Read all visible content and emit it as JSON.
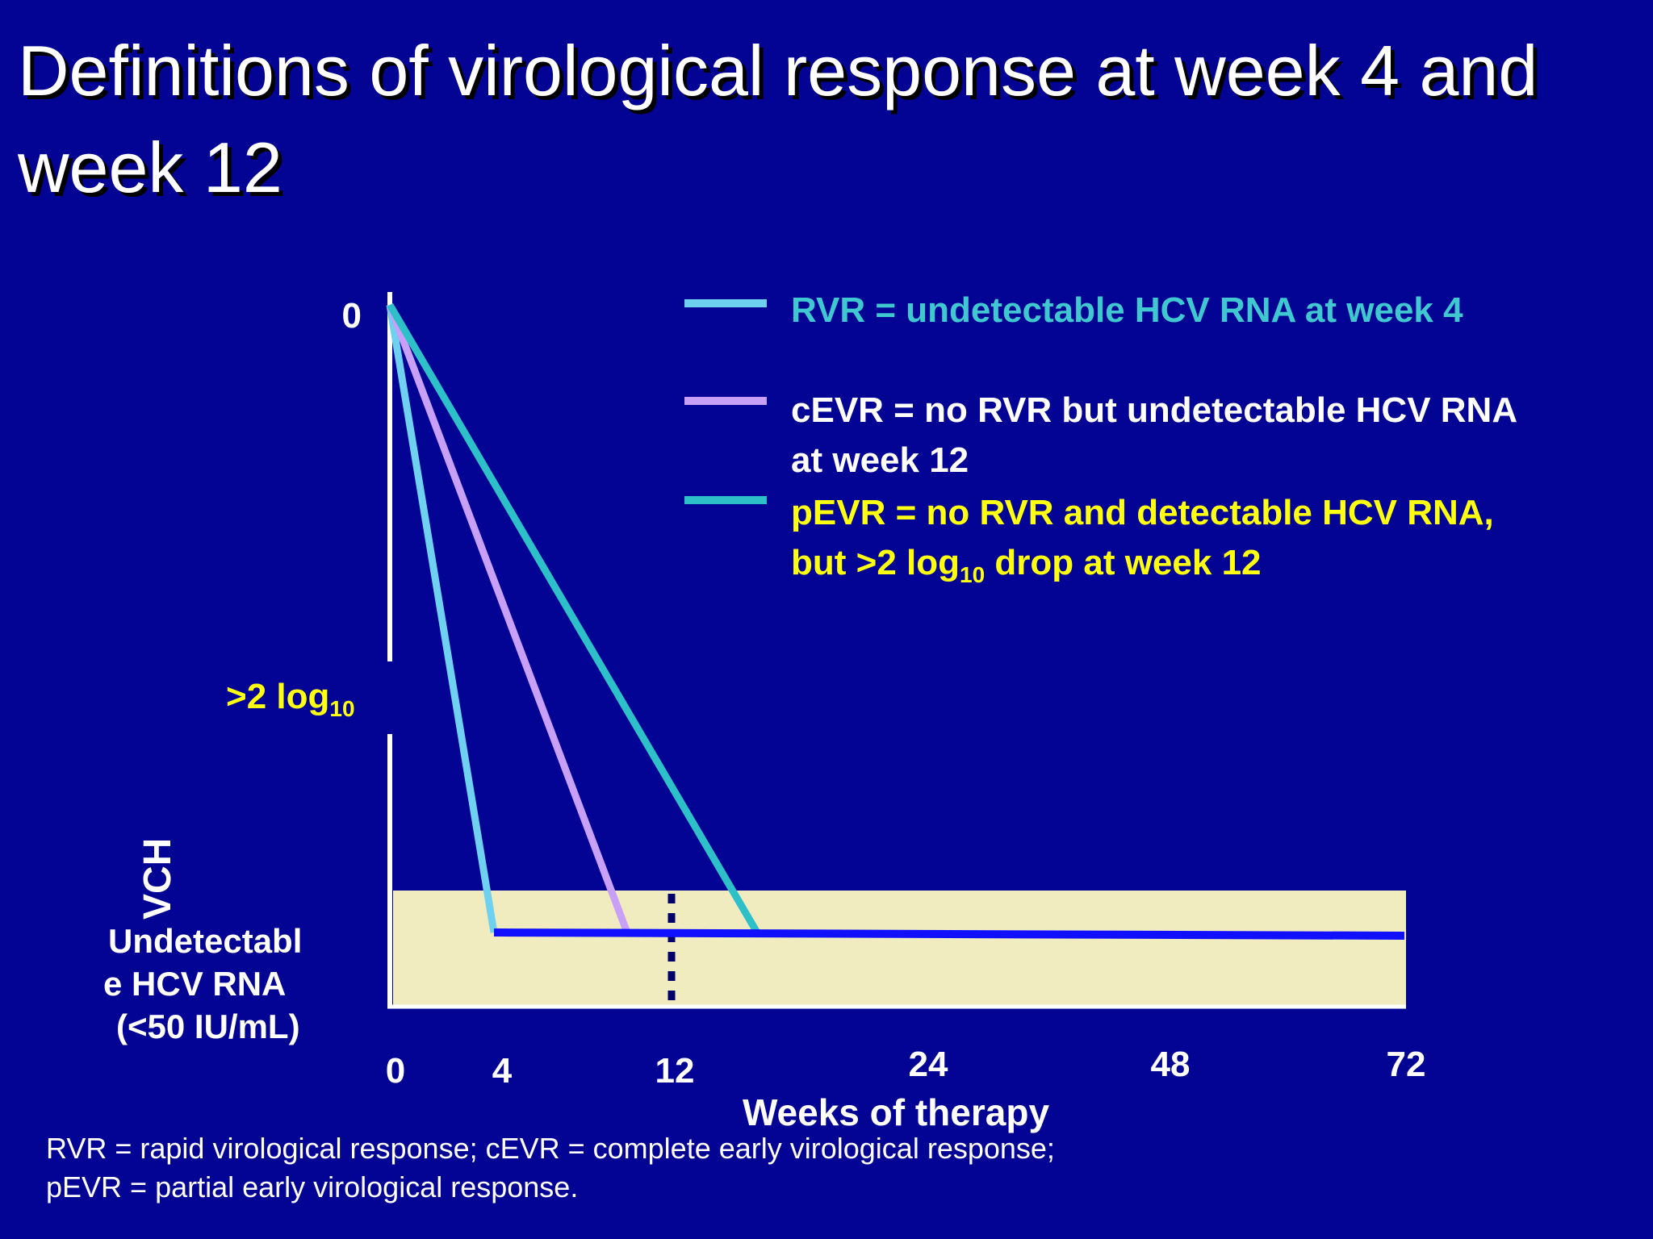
{
  "slide": {
    "title": "Definitions of virological response at week 4 and week 12",
    "footnote_line1": "RVR = rapid virological response;  cEVR = complete early virological response;",
    "footnote_line2": "pEVR = partial early virological response."
  },
  "chart_data": {
    "type": "line",
    "title": "",
    "xlabel": "Weeks of therapy",
    "ylabel": "VCH",
    "x_ticks": [
      "0",
      "4",
      "12",
      "24",
      "48",
      "72"
    ],
    "y_top_label": "0",
    "y_mid_label": ">2 log",
    "y_mid_sub": "10",
    "undetectable_label": [
      "Undetectabl",
      "e HCV RNA",
      "(<50 IU/mL)"
    ],
    "series": [
      {
        "name": "RVR",
        "color": "#6fd0f0",
        "points": [
          [
            0,
            0
          ],
          [
            4,
            1
          ]
        ]
      },
      {
        "name": "cEVR",
        "color": "#c8a0f8",
        "points": [
          [
            0,
            0
          ],
          [
            10,
            1
          ]
        ]
      },
      {
        "name": "pEVR",
        "color": "#2ec0c8",
        "points": [
          [
            0,
            0
          ],
          [
            16,
            1
          ]
        ]
      },
      {
        "name": "undetectable",
        "color": "#1010ff",
        "points": [
          [
            4,
            1
          ],
          [
            72,
            1
          ]
        ]
      }
    ],
    "legend": [
      {
        "color": "#6fd0f0",
        "text": "RVR = undetectable HCV RNA at week 4",
        "text_color": "#40c8d0"
      },
      {
        "color": "#c8a0f8",
        "text1": "cEVR = no RVR but undetectable HCV RNA",
        "text2": "at week 12",
        "text_color": "#ffffff"
      },
      {
        "color": "#2ec0c8",
        "text1": "pEVR = no RVR and detectable HCV RNA,",
        "text2a": "but >2 log",
        "text2sub": "10",
        "text2b": " drop at week 12",
        "text_color": "#ffff10"
      }
    ],
    "undetectable_band_color": "#f0ecc0",
    "axis_color": "#ffffff"
  }
}
